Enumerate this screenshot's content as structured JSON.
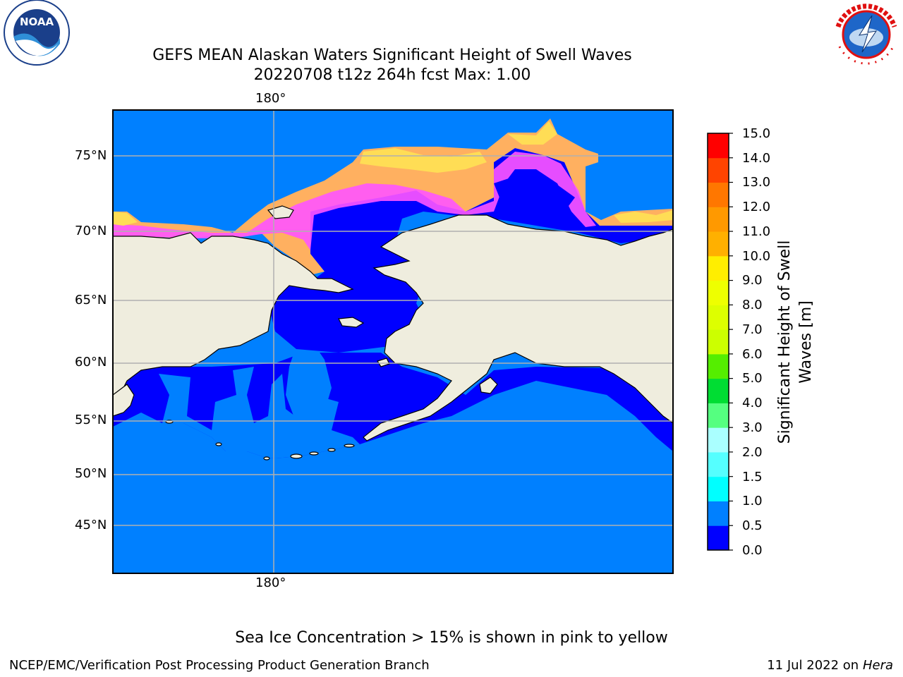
{
  "title": {
    "line1": "GEFS MEAN Alaskan Waters Significant Height of Swell Waves",
    "line2": "20220708 t12z 264h fcst   Max: 1.00"
  },
  "logos": {
    "noaa": {
      "text": "NOAA",
      "ring_text": "NATIONAL OCEANIC AND ATMOSPHERIC ADMINISTRATION · U.S. DEPARTMENT OF COMMERCE"
    },
    "nws": {
      "ring_text": "NATIONAL WEATHER SERVICE"
    }
  },
  "map": {
    "lon_label_top": "180°",
    "lon_label_bottom": "180°",
    "lat_labels": [
      "75°N",
      "70°N",
      "65°N",
      "60°N",
      "55°N",
      "50°N",
      "45°N"
    ],
    "colors": {
      "land": "#efedde",
      "ocean_low": "#0000ff",
      "ocean_mid": "#0080ff",
      "ice_pink": "#ff55ff",
      "ice_orange": "#ffb060",
      "ice_yellow": "#ffdd55",
      "grid": "#b0b0b0"
    }
  },
  "colorbar": {
    "title": "Significant Height of Swell Waves [m]",
    "tick_labels": [
      "15.0",
      "14.0",
      "13.0",
      "12.0",
      "11.0",
      "10.0",
      "9.0",
      "8.0",
      "7.0",
      "6.0",
      "5.0",
      "4.0",
      "3.0",
      "2.0",
      "1.5",
      "1.0",
      "0.5",
      "0.0"
    ],
    "bins": [
      {
        "range": "0.0-0.5",
        "color": "#0000ff"
      },
      {
        "range": "0.5-1.0",
        "color": "#0080ff"
      },
      {
        "range": "1.0-1.5",
        "color": "#00ffff"
      },
      {
        "range": "1.5-2.0",
        "color": "#55ffff"
      },
      {
        "range": "2.0-3.0",
        "color": "#aaffff"
      },
      {
        "range": "3.0-4.0",
        "color": "#55ff80"
      },
      {
        "range": "4.0-5.0",
        "color": "#00dd33"
      },
      {
        "range": "5.0-6.0",
        "color": "#55ee00"
      },
      {
        "range": "6.0-7.0",
        "color": "#ccff00"
      },
      {
        "range": "7.0-8.0",
        "color": "#ddff00"
      },
      {
        "range": "8.0-9.0",
        "color": "#eeff00"
      },
      {
        "range": "9.0-10.0",
        "color": "#ffee00"
      },
      {
        "range": "10.0-11.0",
        "color": "#ffb000"
      },
      {
        "range": "11.0-12.0",
        "color": "#ff9900"
      },
      {
        "range": "12.0-13.0",
        "color": "#ff7700"
      },
      {
        "range": "13.0-14.0",
        "color": "#ff4400"
      },
      {
        "range": "14.0-15.0",
        "color": "#ff0000"
      }
    ]
  },
  "note": "Sea Ice Concentration > 15% is shown in pink to yellow",
  "footer": {
    "left": "NCEP/EMC/Verification Post Processing Product Generation Branch",
    "right_date": "11 Jul 2022 on ",
    "right_host": "Hera"
  }
}
